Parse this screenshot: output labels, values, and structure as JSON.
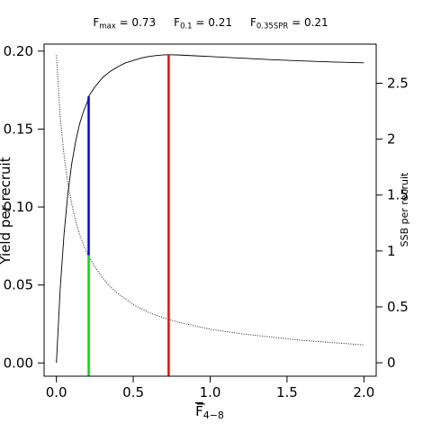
{
  "header": {
    "items": [
      {
        "main": "F",
        "sub": "max",
        "value": " = 0.73"
      },
      {
        "main": "F",
        "sub": "0.1",
        "value": " = 0.21"
      },
      {
        "main": "F",
        "sub": "0.35SPR",
        "value": " = 0.21"
      }
    ]
  },
  "chart_data": {
    "type": "line",
    "xlabel_main": "F",
    "xlabel_sub": "4−8",
    "ylabel": "Yield per recruit",
    "y2label": "SSB per recruit",
    "xlim": [
      -0.08,
      2.08
    ],
    "ylim": [
      -0.0085,
      0.2045
    ],
    "y2lim": [
      -0.12,
      2.85
    ],
    "x_ticks": [
      0,
      0.5,
      1,
      1.5,
      2
    ],
    "x_tick_labels": [
      "0.0",
      "0.5",
      "1.0",
      "1.5",
      "2.0"
    ],
    "y_ticks": [
      0,
      0.05,
      0.1,
      0.15,
      0.2
    ],
    "y_tick_labels": [
      "0.00",
      "0.05",
      "0.10",
      "0.15",
      "0.20"
    ],
    "y2_ticks": [
      0,
      0.5,
      1,
      1.5,
      2,
      2.5
    ],
    "y2_tick_labels": [
      "0",
      "0.5",
      "1",
      "1.5",
      "2",
      "2.5"
    ],
    "grid": false,
    "series": [
      {
        "axis": "left",
        "style": "solid",
        "color": "#000000",
        "x": [
          0,
          0.025,
          0.05,
          0.075,
          0.1,
          0.125,
          0.15,
          0.175,
          0.2,
          0.21,
          0.25,
          0.3,
          0.35,
          0.4,
          0.45,
          0.5,
          0.55,
          0.6,
          0.65,
          0.7,
          0.73,
          0.8,
          0.9,
          1.0,
          1.2,
          1.4,
          1.6,
          1.8,
          2.0
        ],
        "y": [
          0,
          0.048,
          0.083,
          0.109,
          0.128,
          0.142,
          0.153,
          0.161,
          0.167,
          0.171,
          0.177,
          0.183,
          0.187,
          0.19,
          0.1925,
          0.194,
          0.1955,
          0.1965,
          0.1972,
          0.1976,
          0.1977,
          0.1975,
          0.197,
          0.1965,
          0.1955,
          0.1945,
          0.1937,
          0.193,
          0.1925
        ]
      },
      {
        "axis": "right",
        "style": "dotted",
        "color": "#000000",
        "x": [
          0,
          0.025,
          0.05,
          0.075,
          0.1,
          0.125,
          0.15,
          0.175,
          0.2,
          0.21,
          0.25,
          0.3,
          0.35,
          0.4,
          0.5,
          0.6,
          0.7,
          0.8,
          1.0,
          1.2,
          1.4,
          1.6,
          1.8,
          2.0
        ],
        "y": [
          2.75,
          2.2,
          1.85,
          1.6,
          1.42,
          1.27,
          1.15,
          1.06,
          0.98,
          0.95,
          0.86,
          0.76,
          0.68,
          0.62,
          0.52,
          0.45,
          0.4,
          0.36,
          0.3,
          0.26,
          0.23,
          0.2,
          0.18,
          0.16
        ]
      }
    ],
    "reference_lines": [
      {
        "label": "F0.1",
        "color": "#0000ff",
        "x": 0.21,
        "y_from": 0.069,
        "y_to": 0.171
      },
      {
        "label": "F0.35SPR",
        "color": "#00dd00",
        "x": 0.21,
        "y_from": -0.0085,
        "y_to": 0.069
      },
      {
        "label": "Fmax",
        "color": "#ff0000",
        "x": 0.73,
        "y_from": -0.0085,
        "y_to": 0.1977
      }
    ]
  }
}
